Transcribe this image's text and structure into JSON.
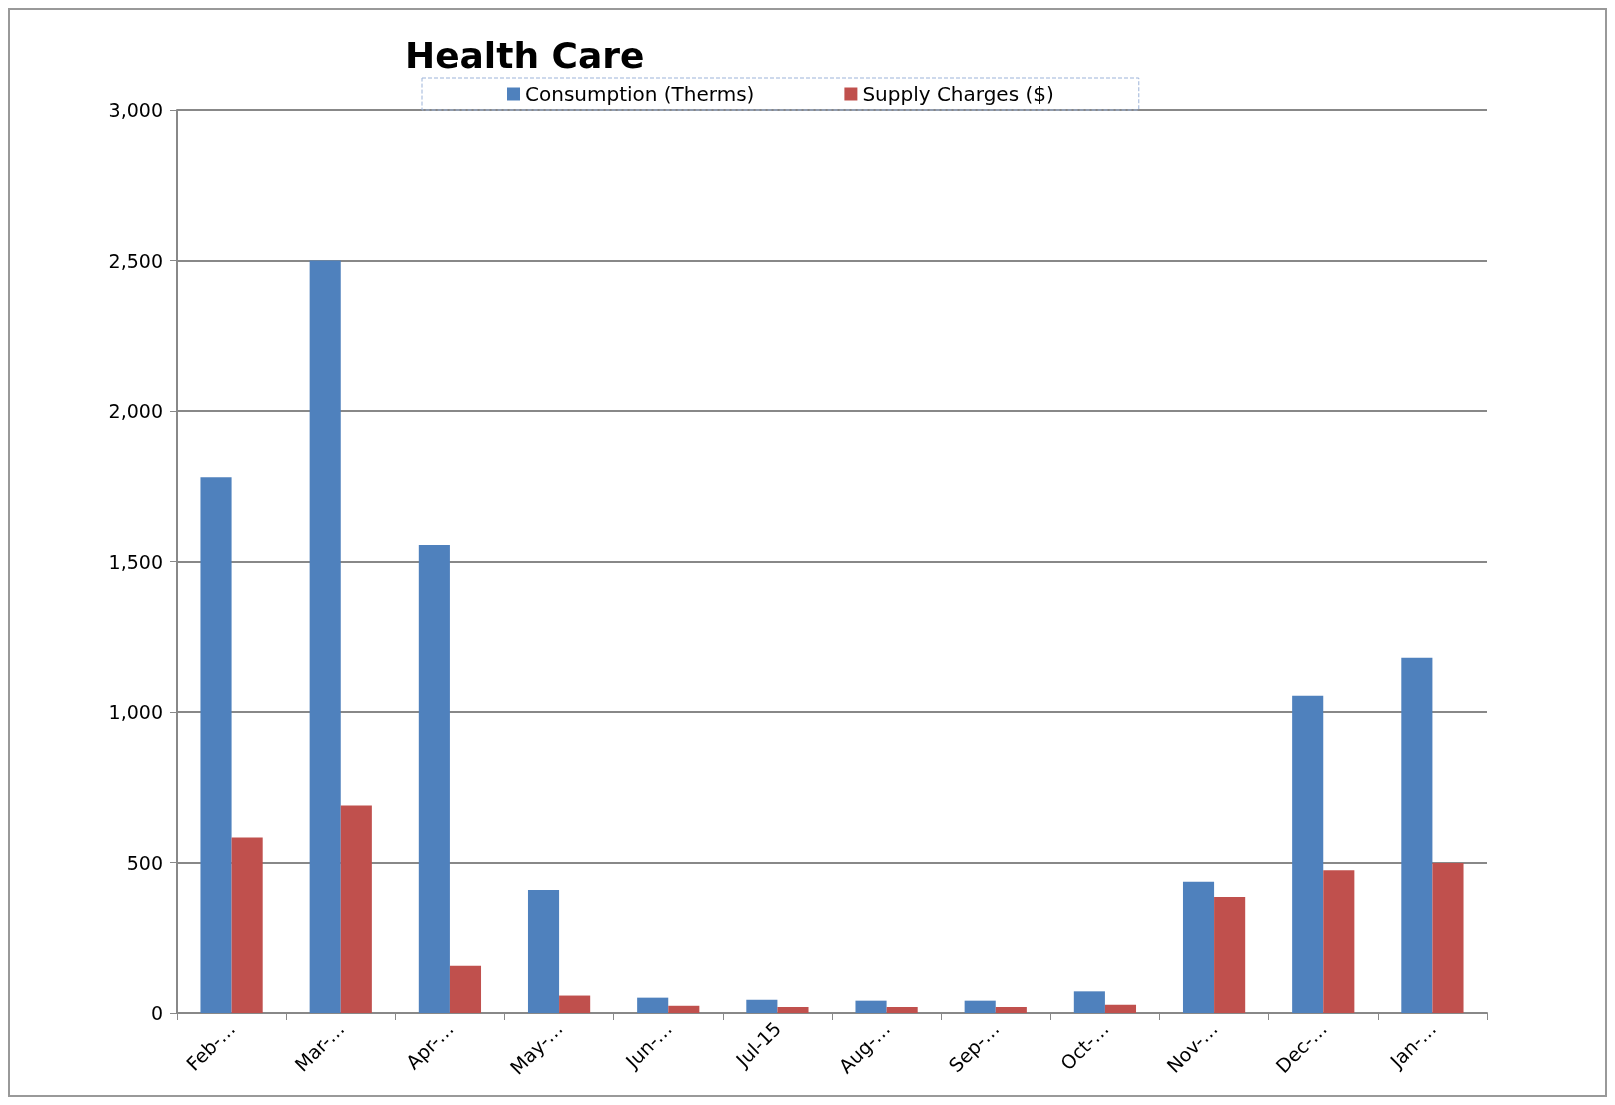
{
  "chart_data": {
    "type": "bar",
    "title": "Health Care",
    "categories": [
      "Feb-…",
      "Mar-…",
      "Apr-…",
      "May-…",
      "Jun-…",
      "Jul-15",
      "Aug-…",
      "Sep-…",
      "Oct-…",
      "Nov-…",
      "Dec-…",
      "Jan-…"
    ],
    "series": [
      {
        "name": "Consumption (Therms)",
        "color": "#4f81bd",
        "values": [
          1780,
          2500,
          1555,
          409,
          51,
          44,
          41,
          41,
          72,
          436,
          1054,
          1180
        ]
      },
      {
        "name": "Supply Charges ($)",
        "color": "#c0504d",
        "values": [
          583,
          689,
          157,
          58,
          24,
          20,
          20,
          20,
          27,
          385,
          474,
          498
        ]
      }
    ],
    "ylim": [
      0,
      3000
    ],
    "yticks": [
      0,
      500,
      {
        "value": 1000,
        "label": "1,000"
      },
      {
        "value": 1500,
        "label": "1,500"
      },
      {
        "value": 2000,
        "label": "2,000"
      },
      {
        "value": 2500,
        "label": "2,500"
      },
      {
        "value": 3000,
        "label": "3,000"
      }
    ],
    "grid": "y",
    "legend": "top"
  }
}
